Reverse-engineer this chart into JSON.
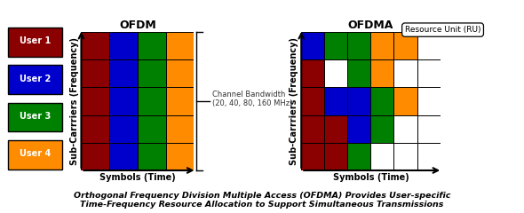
{
  "colors": {
    "user1": "#8B0000",
    "user2": "#0000CD",
    "user3": "#008000",
    "user4": "#FF8C00",
    "white": "#FFFFFF"
  },
  "ofdm_grid": [
    [
      "user1",
      "user2",
      "user3",
      "user4"
    ],
    [
      "user1",
      "user2",
      "user3",
      "user4"
    ],
    [
      "user1",
      "user2",
      "user3",
      "user4"
    ],
    [
      "user1",
      "user2",
      "user3",
      "user4"
    ],
    [
      "user1",
      "user2",
      "user3",
      "user4"
    ]
  ],
  "ofdma_grid": [
    [
      "user2",
      "user3",
      "user3",
      "user4",
      "user4",
      "white"
    ],
    [
      "user1",
      "white",
      "user3",
      "user4",
      "white",
      "white"
    ],
    [
      "user1",
      "user2",
      "user2",
      "user3",
      "user4",
      "white"
    ],
    [
      "user1",
      "user1",
      "user2",
      "user3",
      "white",
      "white"
    ],
    [
      "user1",
      "user1",
      "user3",
      "white",
      "white",
      "white"
    ]
  ],
  "legend_users": [
    "User 1",
    "User 2",
    "User 3",
    "User 4"
  ],
  "legend_colors": [
    "#8B0000",
    "#0000CD",
    "#008000",
    "#FF8C00"
  ],
  "title_ofdm": "OFDM",
  "title_ofdma": "OFDMA",
  "xlabel": "Symbols (Time)",
  "ylabel": "Sub-Carrriers (Frequency)",
  "channel_bw_text": "Channel Bandwidth\n(20, 40, 80, 160 MHz)",
  "ru_text": "Resource Unit (RU)",
  "caption": "Orthogonal Frequency Division Multiple Access (OFDMA) Provides User-specific\nTime-Frequency Resource Allocation to Support Simultaneous Transmissions",
  "figsize": [
    5.9,
    2.4
  ],
  "dpi": 100
}
